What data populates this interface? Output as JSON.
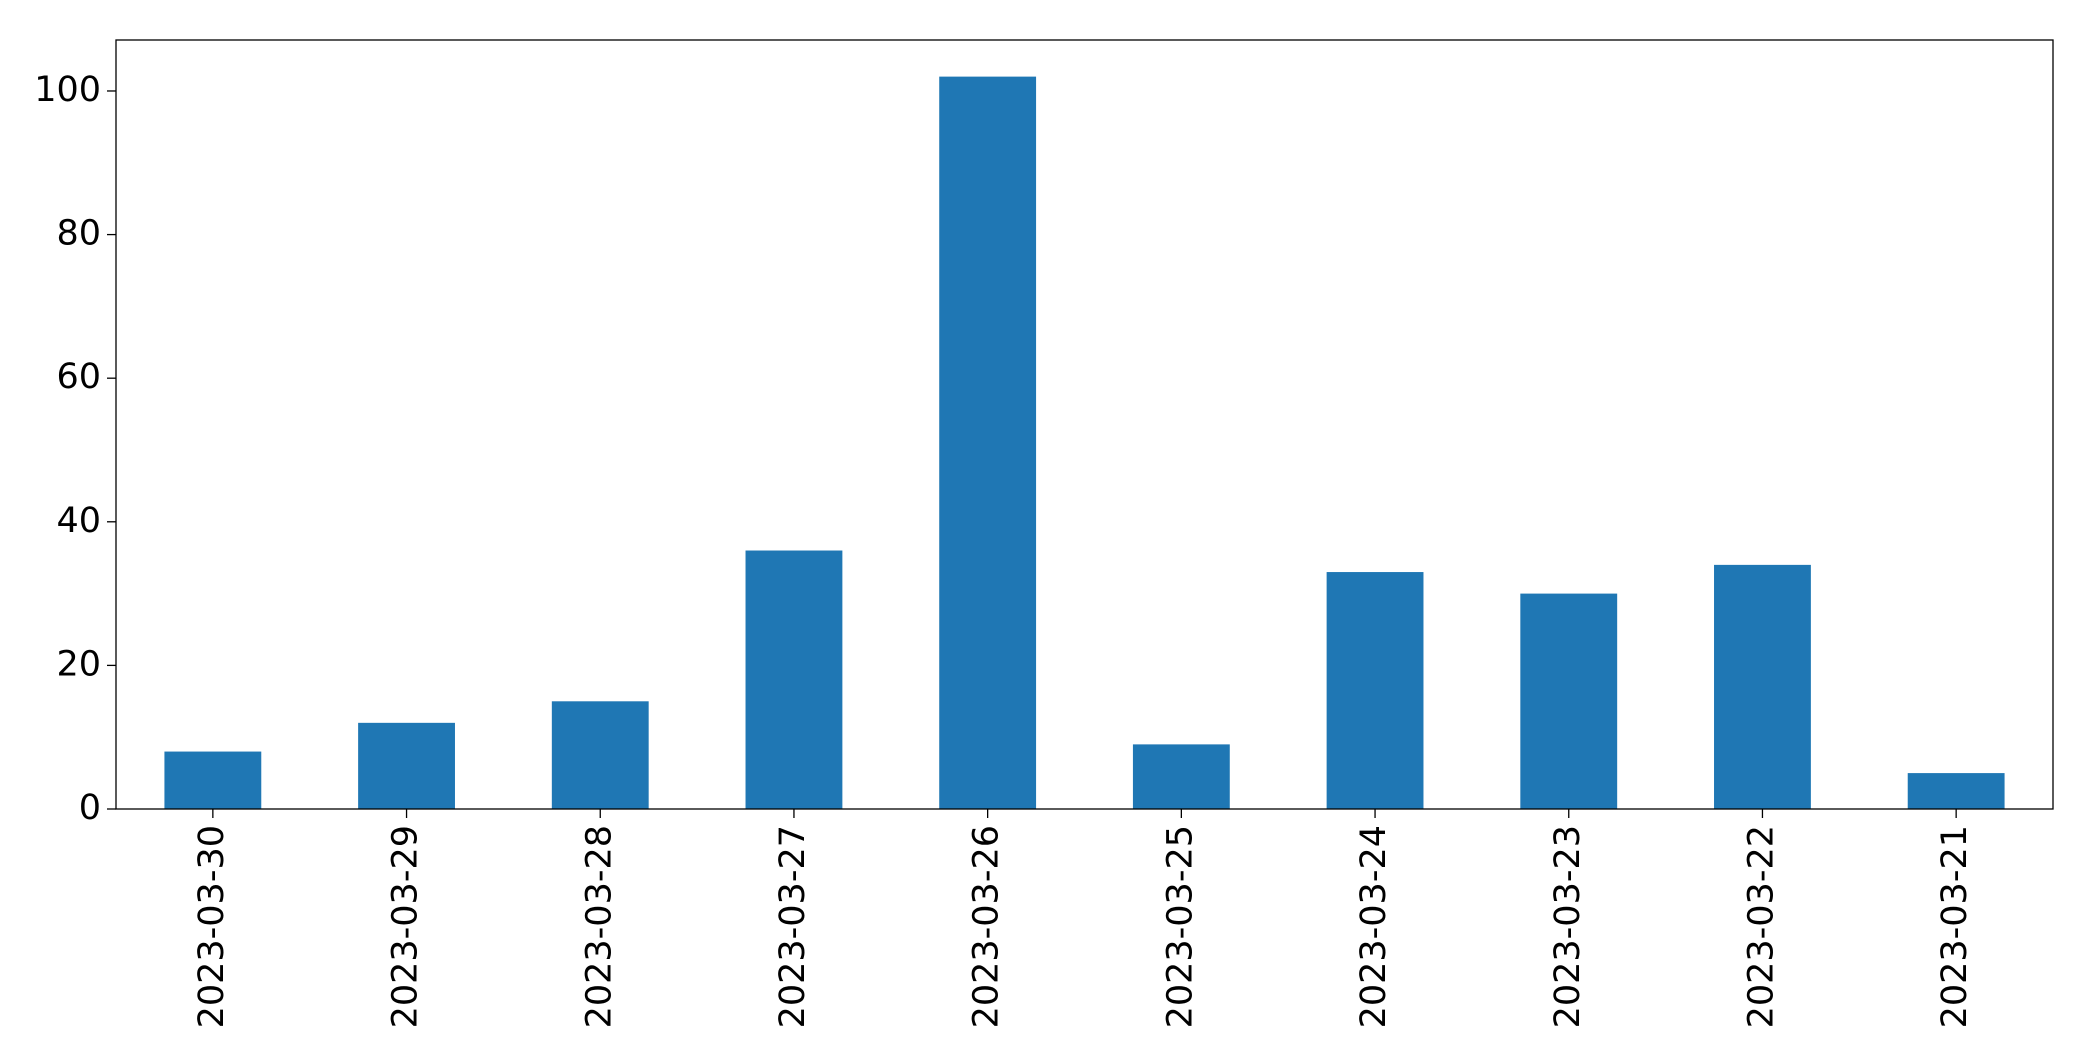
{
  "chart_data": {
    "type": "bar",
    "categories": [
      "2023-03-30",
      "2023-03-29",
      "2023-03-28",
      "2023-03-27",
      "2023-03-26",
      "2023-03-25",
      "2023-03-24",
      "2023-03-23",
      "2023-03-22",
      "2023-03-21"
    ],
    "values": [
      8,
      12,
      15,
      36,
      102,
      9,
      33,
      30,
      34,
      5
    ],
    "color": "#1f77b4",
    "ylim": [
      0,
      107.1
    ],
    "yticks": [
      0,
      20,
      40,
      60,
      80,
      100
    ],
    "grid": false
  }
}
